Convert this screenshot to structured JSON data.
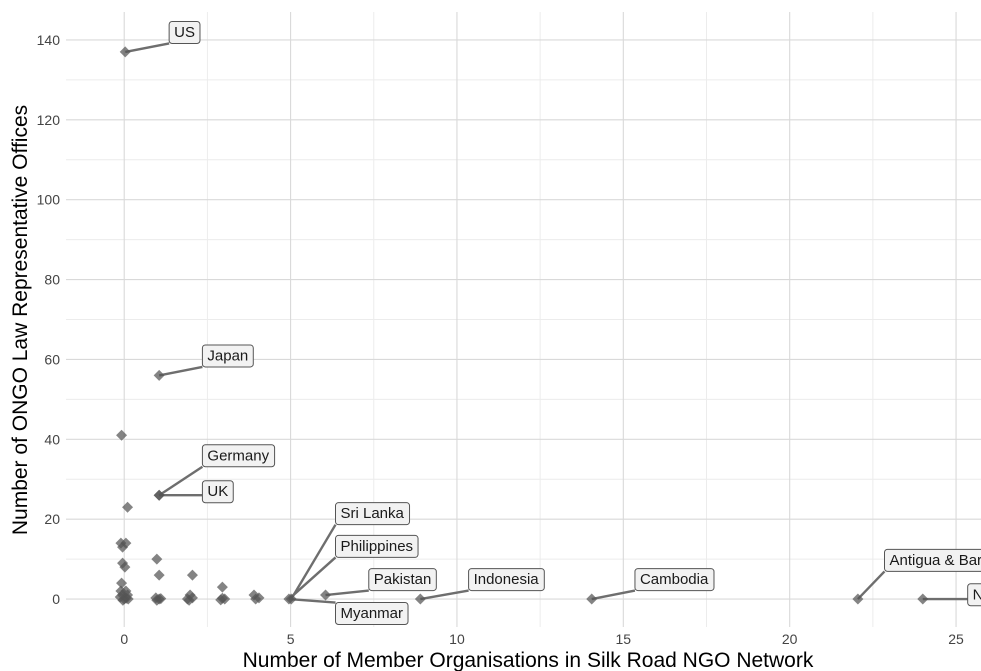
{
  "chart_data": {
    "type": "scatter",
    "xlabel": "Number of Member Organisations in Silk Road NGO Network",
    "ylabel": "Number of ONGO Law Representative Offices",
    "xlim": [
      -1.75,
      25.75
    ],
    "ylim": [
      -7,
      147
    ],
    "x_ticks": [
      0,
      5,
      10,
      15,
      20,
      25
    ],
    "y_ticks": [
      0,
      20,
      40,
      60,
      80,
      100,
      120,
      140
    ],
    "grid": true,
    "legend": "none",
    "colors": {
      "point": "#555555",
      "grid_major": "#d9d9d9",
      "grid_minor": "#ececec"
    },
    "points": [
      {
        "x": 0.03,
        "y": 137
      },
      {
        "x": 1.05,
        "y": 56
      },
      {
        "x": -0.08,
        "y": 41
      },
      {
        "x": 1.05,
        "y": 26
      },
      {
        "x": 1.05,
        "y": 26
      },
      {
        "x": 0.1,
        "y": 23
      },
      {
        "x": -0.1,
        "y": 14
      },
      {
        "x": 0.05,
        "y": 14
      },
      {
        "x": -0.05,
        "y": 13
      },
      {
        "x": 0.98,
        "y": 10
      },
      {
        "x": -0.05,
        "y": 9
      },
      {
        "x": 0.02,
        "y": 8
      },
      {
        "x": 1.05,
        "y": 6
      },
      {
        "x": 2.05,
        "y": 6
      },
      {
        "x": -0.08,
        "y": 4
      },
      {
        "x": 2.95,
        "y": 3
      },
      {
        "x": -0.1,
        "y": 2
      },
      {
        "x": 0.05,
        "y": 2
      },
      {
        "x": 1.98,
        "y": 1
      },
      {
        "x": 3.9,
        "y": 1
      },
      {
        "x": -0.05,
        "y": 1
      },
      {
        "x": 0.1,
        "y": 1
      },
      {
        "x": -0.12,
        "y": 0.5
      },
      {
        "x": 0.0,
        "y": 0
      },
      {
        "x": 0.06,
        "y": 0.2
      },
      {
        "x": -0.04,
        "y": -0.3
      },
      {
        "x": 0.12,
        "y": 0
      },
      {
        "x": 0.95,
        "y": 0.3
      },
      {
        "x": 1.05,
        "y": 0
      },
      {
        "x": 0.98,
        "y": -0.3
      },
      {
        "x": 1.1,
        "y": 0.1
      },
      {
        "x": 1.9,
        "y": 0
      },
      {
        "x": 2.05,
        "y": 0.3
      },
      {
        "x": 1.95,
        "y": -0.3
      },
      {
        "x": 2.95,
        "y": 0.2
      },
      {
        "x": 3.02,
        "y": 0
      },
      {
        "x": 2.9,
        "y": -0.2
      },
      {
        "x": 3.95,
        "y": 0
      },
      {
        "x": 4.05,
        "y": 0.3
      },
      {
        "x": 4.95,
        "y": 0
      },
      {
        "x": 5.02,
        "y": 0
      },
      {
        "x": 6.05,
        "y": 1
      },
      {
        "x": 8.9,
        "y": 0
      },
      {
        "x": 14.05,
        "y": 0
      },
      {
        "x": 22.05,
        "y": 0
      },
      {
        "x": 24.0,
        "y": 0
      }
    ],
    "annotations": [
      {
        "text": "US",
        "x": 0.03,
        "y": 137,
        "lx": 1.5,
        "ly": 142
      },
      {
        "text": "Japan",
        "x": 1.05,
        "y": 56,
        "lx": 2.5,
        "ly": 61
      },
      {
        "text": "Germany",
        "x": 1.05,
        "y": 26,
        "lx": 2.5,
        "ly": 36
      },
      {
        "text": "UK",
        "x": 1.05,
        "y": 26,
        "lx": 2.5,
        "ly": 27
      },
      {
        "text": "Sri Lanka",
        "x": 5.02,
        "y": 0,
        "lx": 6.5,
        "ly": 21.5
      },
      {
        "text": "Philippines",
        "x": 4.95,
        "y": 0,
        "lx": 6.5,
        "ly": 13.3
      },
      {
        "text": "Pakistan",
        "x": 6.05,
        "y": 1,
        "lx": 7.5,
        "ly": 5
      },
      {
        "text": "Indonesia",
        "x": 8.9,
        "y": 0,
        "lx": 10.5,
        "ly": 5
      },
      {
        "text": "Myanmar",
        "x": 4.95,
        "y": 0,
        "lx": 6.5,
        "ly": -3.5
      },
      {
        "text": "Cambodia",
        "x": 14.05,
        "y": 0,
        "lx": 15.5,
        "ly": 5
      },
      {
        "text": "Antigua & Barbuda",
        "x": 22.05,
        "y": 0,
        "lx": 23.0,
        "ly": 9.8
      },
      {
        "text": "Nepal",
        "x": 24.0,
        "y": 0,
        "lx": 25.5,
        "ly": 1.2
      }
    ]
  }
}
